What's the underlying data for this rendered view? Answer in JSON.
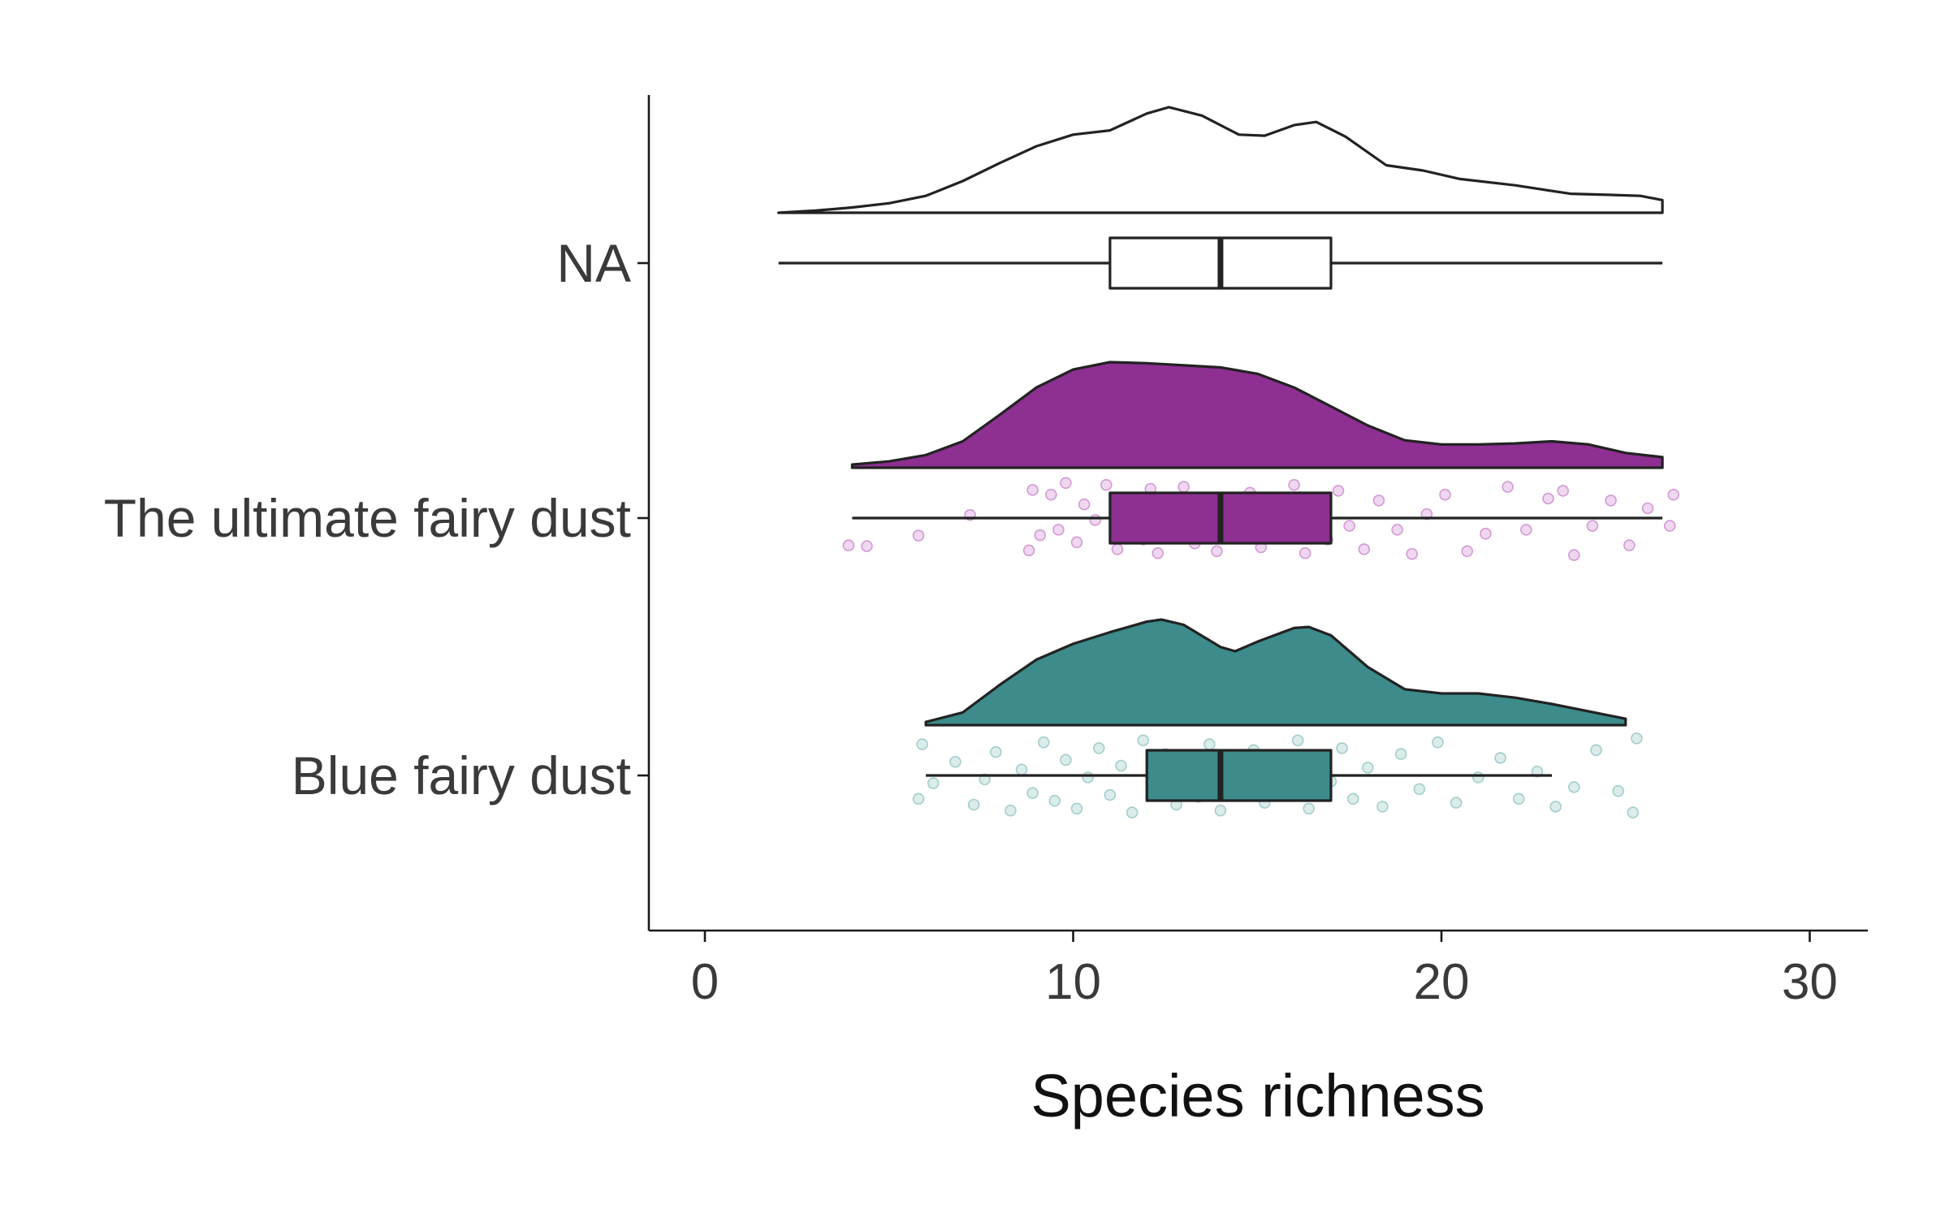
{
  "chart_data": {
    "type": "raincloud",
    "xlabel": "Species richness",
    "xlim": [
      -1.5,
      31.5
    ],
    "x_ticks": [
      0,
      10,
      20,
      30
    ],
    "grid": false,
    "legend": "none",
    "categories": [
      {
        "label": "NA",
        "fill": "#ffffff",
        "point_color": "",
        "min": 2,
        "q1": 11,
        "median": 14,
        "q3": 17,
        "max": 26,
        "density": [
          [
            2,
            0.0
          ],
          [
            3,
            0.02
          ],
          [
            4,
            0.05
          ],
          [
            5,
            0.09
          ],
          [
            6,
            0.16
          ],
          [
            7,
            0.3
          ],
          [
            8,
            0.47
          ],
          [
            9,
            0.63
          ],
          [
            10,
            0.74
          ],
          [
            11,
            0.78
          ],
          [
            12,
            0.94
          ],
          [
            12.6,
            1.0
          ],
          [
            13.5,
            0.92
          ],
          [
            14.5,
            0.74
          ],
          [
            15.2,
            0.73
          ],
          [
            16,
            0.83
          ],
          [
            16.6,
            0.86
          ],
          [
            17.4,
            0.72
          ],
          [
            18.5,
            0.45
          ],
          [
            19.5,
            0.4
          ],
          [
            20.5,
            0.32
          ],
          [
            22,
            0.26
          ],
          [
            23.5,
            0.18
          ],
          [
            24.5,
            0.17
          ],
          [
            25.4,
            0.16
          ],
          [
            26,
            0.12
          ]
        ],
        "points": []
      },
      {
        "label": "The ultimate fairy dust",
        "fill": "#8e2f92",
        "point_color": "#b04ab4",
        "min": 4,
        "q1": 11,
        "median": 14,
        "q3": 17,
        "max": 26,
        "density": [
          [
            4,
            0.03
          ],
          [
            5,
            0.06
          ],
          [
            6,
            0.12
          ],
          [
            7,
            0.25
          ],
          [
            8,
            0.5
          ],
          [
            9,
            0.76
          ],
          [
            10,
            0.93
          ],
          [
            11,
            1.0
          ],
          [
            12,
            0.99
          ],
          [
            13,
            0.97
          ],
          [
            14,
            0.95
          ],
          [
            15,
            0.89
          ],
          [
            16,
            0.76
          ],
          [
            17,
            0.58
          ],
          [
            18,
            0.4
          ],
          [
            19,
            0.26
          ],
          [
            20,
            0.22
          ],
          [
            21,
            0.22
          ],
          [
            22,
            0.23
          ],
          [
            23,
            0.25
          ],
          [
            24,
            0.22
          ],
          [
            25,
            0.14
          ],
          [
            26,
            0.1
          ]
        ],
        "points": [
          [
            3.9,
            0.7
          ],
          [
            4.4,
            0.72
          ],
          [
            5.8,
            0.45
          ],
          [
            7.2,
            -0.08
          ],
          [
            8.8,
            0.83
          ],
          [
            9.1,
            0.44
          ],
          [
            8.9,
            -0.72
          ],
          [
            9.4,
            -0.6
          ],
          [
            9.6,
            0.3
          ],
          [
            9.8,
            -0.9
          ],
          [
            10.1,
            0.62
          ],
          [
            10.3,
            -0.35
          ],
          [
            10.6,
            0.05
          ],
          [
            10.9,
            -0.85
          ],
          [
            11.2,
            0.8
          ],
          [
            11.4,
            -0.5
          ],
          [
            11.7,
            0.1
          ],
          [
            11.9,
            0.55
          ],
          [
            12.1,
            -0.75
          ],
          [
            12.3,
            0.9
          ],
          [
            12.5,
            -0.2
          ],
          [
            12.8,
            0.4
          ],
          [
            13.0,
            -0.8
          ],
          [
            13.3,
            0.65
          ],
          [
            13.6,
            -0.4
          ],
          [
            13.9,
            0.85
          ],
          [
            14.2,
            -0.05
          ],
          [
            14.5,
            0.5
          ],
          [
            14.8,
            -0.65
          ],
          [
            15.1,
            0.75
          ],
          [
            15.4,
            -0.3
          ],
          [
            15.7,
            0.35
          ],
          [
            16.0,
            -0.85
          ],
          [
            16.3,
            0.9
          ],
          [
            16.6,
            -0.15
          ],
          [
            16.9,
            0.55
          ],
          [
            17.2,
            -0.7
          ],
          [
            17.5,
            0.2
          ],
          [
            17.9,
            0.8
          ],
          [
            18.3,
            -0.45
          ],
          [
            18.8,
            0.3
          ],
          [
            19.2,
            0.92
          ],
          [
            19.6,
            -0.1
          ],
          [
            20.1,
            -0.6
          ],
          [
            20.7,
            0.85
          ],
          [
            21.2,
            0.4
          ],
          [
            21.8,
            -0.8
          ],
          [
            22.3,
            0.3
          ],
          [
            22.9,
            -0.5
          ],
          [
            23.3,
            -0.7
          ],
          [
            23.6,
            0.95
          ],
          [
            24.1,
            0.2
          ],
          [
            24.6,
            -0.45
          ],
          [
            25.1,
            0.7
          ],
          [
            25.6,
            -0.25
          ],
          [
            26.2,
            0.2
          ],
          [
            26.3,
            -0.6
          ]
        ]
      },
      {
        "label": "Blue fairy dust",
        "fill": "#3d8b8b",
        "point_color": "#5aa7a3",
        "min": 6,
        "q1": 12,
        "median": 14,
        "q3": 17,
        "max": 23,
        "density": [
          [
            6,
            0.03
          ],
          [
            7,
            0.12
          ],
          [
            8,
            0.38
          ],
          [
            9,
            0.62
          ],
          [
            10,
            0.77
          ],
          [
            11,
            0.88
          ],
          [
            12,
            0.98
          ],
          [
            12.4,
            1.0
          ],
          [
            13,
            0.95
          ],
          [
            14,
            0.74
          ],
          [
            14.4,
            0.7
          ],
          [
            15,
            0.79
          ],
          [
            16,
            0.92
          ],
          [
            16.4,
            0.93
          ],
          [
            17,
            0.85
          ],
          [
            18,
            0.55
          ],
          [
            19,
            0.34
          ],
          [
            20,
            0.3
          ],
          [
            21,
            0.3
          ],
          [
            22,
            0.26
          ],
          [
            23,
            0.2
          ],
          [
            24,
            0.13
          ],
          [
            25,
            0.06
          ]
        ],
        "points": [
          [
            5.8,
            0.6
          ],
          [
            5.9,
            -0.8
          ],
          [
            6.2,
            0.2
          ],
          [
            6.8,
            -0.35
          ],
          [
            7.3,
            0.75
          ],
          [
            7.6,
            0.1
          ],
          [
            7.9,
            -0.6
          ],
          [
            8.3,
            0.9
          ],
          [
            8.6,
            -0.15
          ],
          [
            8.9,
            0.45
          ],
          [
            9.2,
            -0.85
          ],
          [
            9.5,
            0.65
          ],
          [
            9.8,
            -0.4
          ],
          [
            10.1,
            0.85
          ],
          [
            10.4,
            0.05
          ],
          [
            10.7,
            -0.7
          ],
          [
            11.0,
            0.5
          ],
          [
            11.3,
            -0.25
          ],
          [
            11.6,
            0.95
          ],
          [
            11.9,
            -0.9
          ],
          [
            12.2,
            0.3
          ],
          [
            12.5,
            -0.55
          ],
          [
            12.8,
            0.75
          ],
          [
            13.1,
            -0.1
          ],
          [
            13.4,
            0.55
          ],
          [
            13.7,
            -0.8
          ],
          [
            14.0,
            0.9
          ],
          [
            14.3,
            -0.35
          ],
          [
            14.6,
            0.2
          ],
          [
            14.9,
            -0.65
          ],
          [
            15.2,
            0.7
          ],
          [
            15.5,
            -0.05
          ],
          [
            15.8,
            0.4
          ],
          [
            16.1,
            -0.9
          ],
          [
            16.4,
            0.85
          ],
          [
            16.7,
            -0.45
          ],
          [
            17.0,
            0.15
          ],
          [
            17.3,
            -0.7
          ],
          [
            17.6,
            0.6
          ],
          [
            18.0,
            -0.2
          ],
          [
            18.4,
            0.8
          ],
          [
            18.9,
            -0.55
          ],
          [
            19.4,
            0.35
          ],
          [
            19.9,
            -0.85
          ],
          [
            20.4,
            0.7
          ],
          [
            21.0,
            0.05
          ],
          [
            21.6,
            -0.45
          ],
          [
            22.1,
            0.6
          ],
          [
            22.6,
            -0.1
          ],
          [
            23.1,
            0.8
          ],
          [
            23.6,
            0.3
          ],
          [
            24.2,
            -0.65
          ],
          [
            24.8,
            0.4
          ],
          [
            25.2,
            0.95
          ],
          [
            25.3,
            -0.95
          ]
        ]
      }
    ]
  }
}
